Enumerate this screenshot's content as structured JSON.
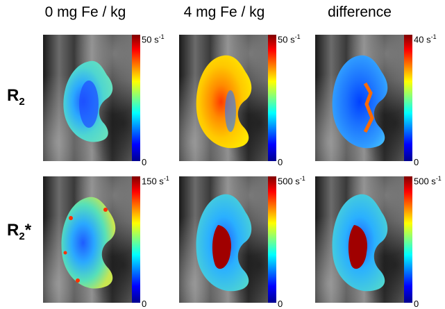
{
  "columns": [
    "0 mg Fe / kg",
    "4 mg Fe / kg",
    "difference"
  ],
  "rows": [
    {
      "label_main": "R",
      "label_sub": "2",
      "label_suffix": ""
    },
    {
      "label_main": "R",
      "label_sub": "2",
      "label_suffix": "*"
    }
  ],
  "colorbars": [
    [
      {
        "max": "50 s",
        "exp": "-1",
        "min": "0"
      },
      {
        "max": "50 s",
        "exp": "-1",
        "min": "0"
      },
      {
        "max": "40 s",
        "exp": "-1",
        "min": "0"
      }
    ],
    [
      {
        "max": "150 s",
        "exp": "-1",
        "min": "0"
      },
      {
        "max": "500 s",
        "exp": "-1",
        "min": "0"
      },
      {
        "max": "500 s",
        "exp": "-1",
        "min": "0"
      }
    ]
  ],
  "colormap": [
    "#00008f",
    "#0000ff",
    "#00ffff",
    "#ffff00",
    "#ff0000",
    "#800000"
  ]
}
